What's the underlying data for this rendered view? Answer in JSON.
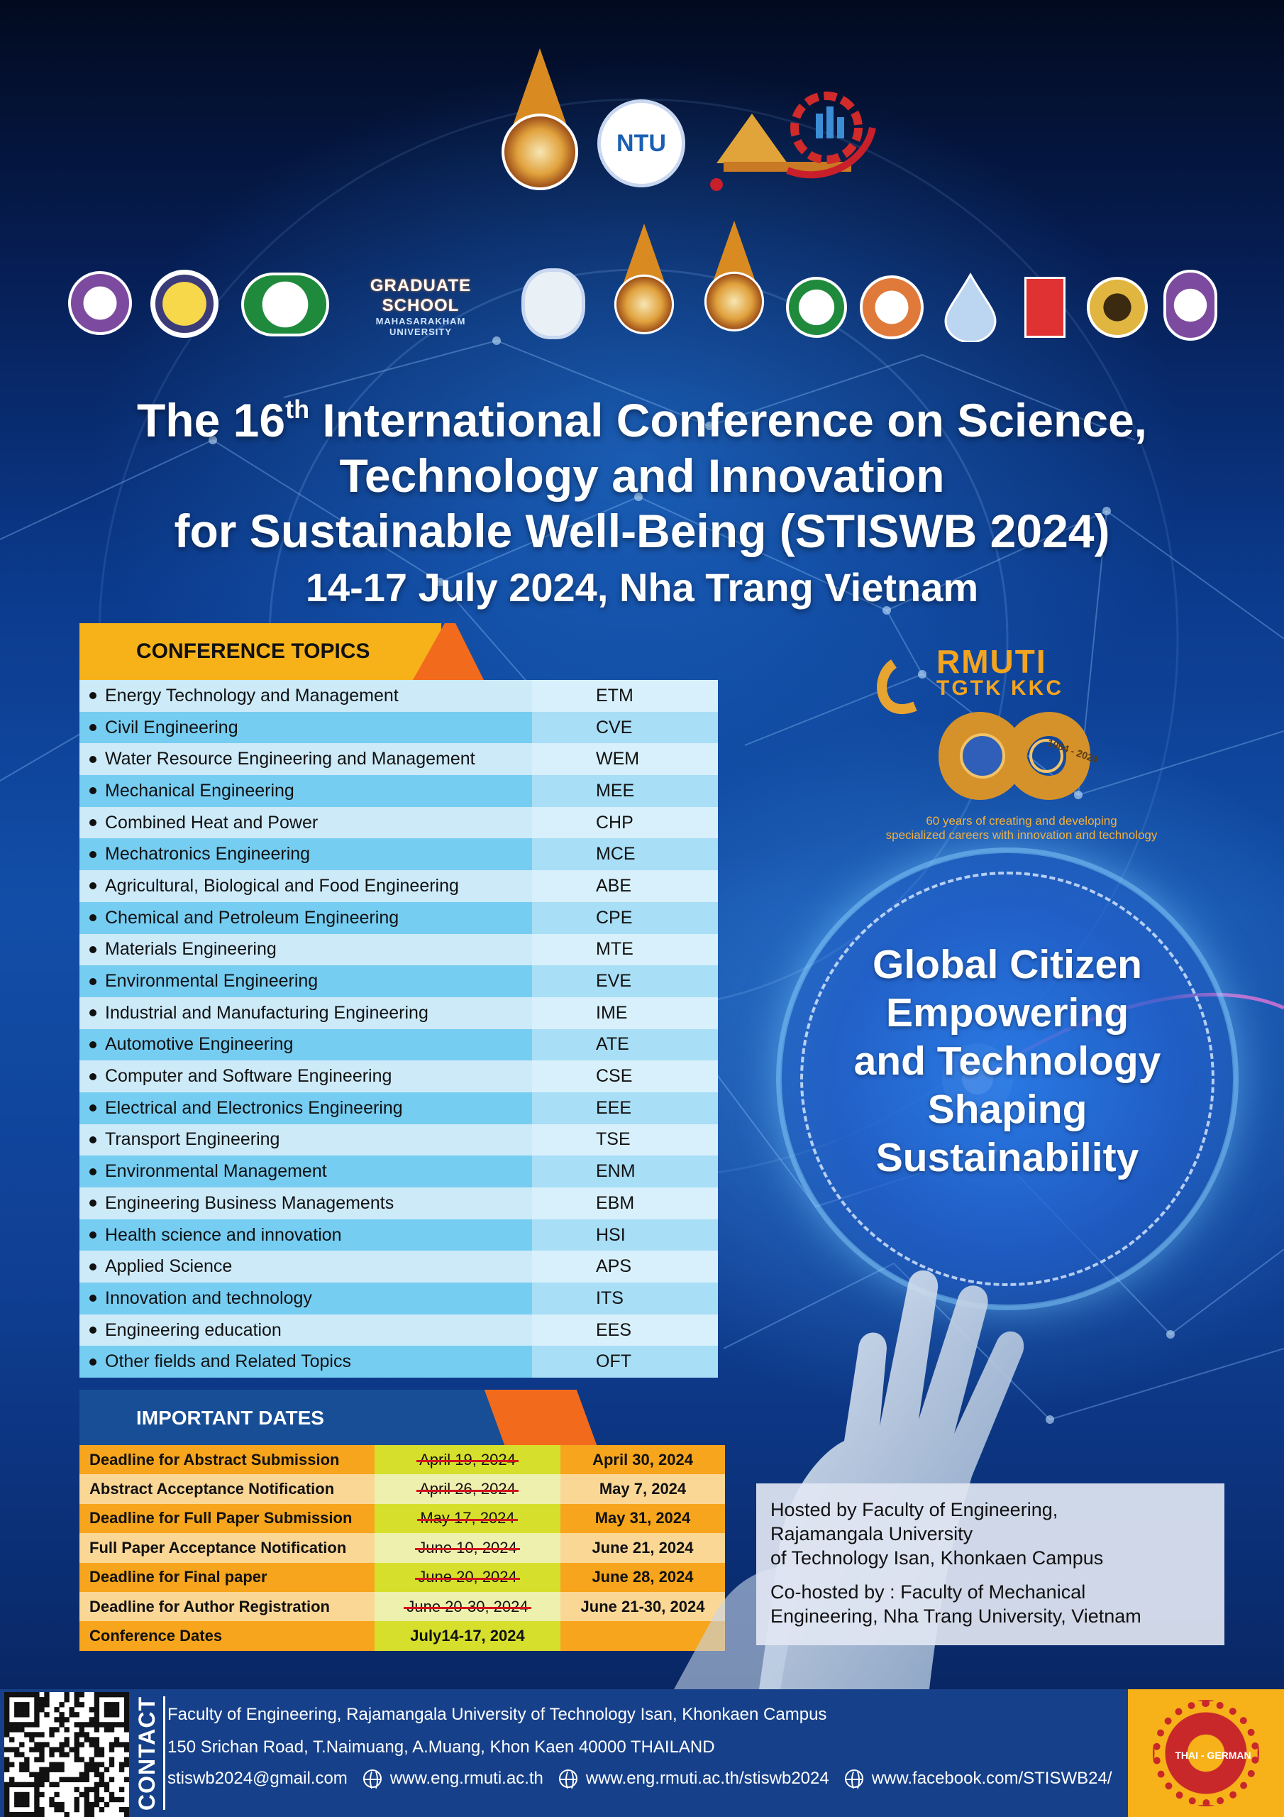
{
  "title": {
    "line1_pre": "The 16",
    "line1_sup": "th",
    "line1_post": " International Conference on Science,",
    "line2": "Technology and Innovation",
    "line3": "for Sustainable Well-Being (STISWB 2024)",
    "dates": "14-17 July 2024,  Nha Trang Vietnam"
  },
  "logos": {
    "ntu": "NTU",
    "graduate_school": "GRADUATE SCHOOL",
    "graduate_school_sub": "MAHASARAKHAM UNIVERSITY"
  },
  "topics": {
    "heading": "CONFERENCE   TOPICS",
    "items": [
      {
        "name": "Energy Technology and Management",
        "code": "ETM"
      },
      {
        "name": "Civil Engineering",
        "code": "CVE"
      },
      {
        "name": "Water Resource Engineering and Management",
        "code": "WEM"
      },
      {
        "name": "Mechanical Engineering",
        "code": "MEE"
      },
      {
        "name": "Combined Heat and Power",
        "code": "CHP"
      },
      {
        "name": "Mechatronics Engineering",
        "code": "MCE"
      },
      {
        "name": "Agricultural, Biological and Food Engineering",
        "code": "ABE"
      },
      {
        "name": "Chemical and Petroleum Engineering",
        "code": "CPE"
      },
      {
        "name": "Materials Engineering",
        "code": "MTE"
      },
      {
        "name": "Environmental Engineering",
        "code": "EVE"
      },
      {
        "name": "Industrial and Manufacturing Engineering",
        "code": "IME"
      },
      {
        "name": "Automotive Engineering",
        "code": "ATE"
      },
      {
        "name": "Computer and Software Engineering",
        "code": "CSE"
      },
      {
        "name": "Electrical and Electronics Engineering",
        "code": "EEE"
      },
      {
        "name": "Transport Engineering",
        "code": "TSE"
      },
      {
        "name": "Environmental Management",
        "code": "ENM"
      },
      {
        "name": "Engineering Business Managements",
        "code": "EBM"
      },
      {
        "name": "Health science and innovation",
        "code": "HSI"
      },
      {
        "name": "Applied Science",
        "code": "APS"
      },
      {
        "name": "Innovation and technology",
        "code": "ITS"
      },
      {
        "name": "Engineering education",
        "code": "EES"
      },
      {
        "name": "Other fields and Related Topics",
        "code": "OFT"
      }
    ]
  },
  "important_dates": {
    "heading": "IMPORTANT DATES",
    "rows": [
      {
        "label": "Deadline for Abstract Submission",
        "old": "April 19, 2024",
        "new": "April 30, 2024"
      },
      {
        "label": "Abstract Acceptance Notification",
        "old": "April 26, 2024",
        "new": "May 7, 2024"
      },
      {
        "label": "Deadline for Full Paper Submission",
        "old": "May 17, 2024",
        "new": "May 31, 2024"
      },
      {
        "label": "Full Paper Acceptance Notification",
        "old": "June 10, 2024",
        "new": "June 21, 2024"
      },
      {
        "label": "Deadline for Final paper",
        "old": "June 20, 2024",
        "new": "June 28, 2024"
      },
      {
        "label": "Deadline for Author Registration",
        "old": "June 20-30, 2024",
        "new": "June 21-30, 2024"
      },
      {
        "label": "Conference Dates",
        "old": "July14-17, 2024",
        "new": ""
      }
    ]
  },
  "rmuti": {
    "title": "RMUTI",
    "subtitle": "TGTK KKC",
    "years": "1964 - 2024",
    "tagline_1": "60 years of creating and developing",
    "tagline_2": "specialized careers with innovation and technology"
  },
  "slogan": {
    "line1": "Global Citizen",
    "line2": "Empowering",
    "line3": "and Technology",
    "line4": "Shaping",
    "line5": "Sustainability"
  },
  "hosted": {
    "line1": "Hosted by Faculty of Engineering,",
    "line2": "Rajamangala University",
    "line3": "of Technology Isan, Khonkaen Campus",
    "co1": "Co-hosted by :  Faculty of Mechanical",
    "co2": "Engineering, Nha Trang University, Vietnam"
  },
  "contact": {
    "label": "CONTACT",
    "line1": "Faculty of Engineering, Rajamangala University of Technology Isan, Khonkaen Campus",
    "line2": "150 Srichan Road, T.Naimuang, A.Muang, Khon Kaen 40000 THAILAND",
    "email": "stiswb2024@gmail.com",
    "web1": "www.eng.rmuti.ac.th",
    "web2": "www.eng.rmuti.ac.th/stiswb2024",
    "facebook": "www.facebook.com/STISWB24/",
    "tge_label": "THAI - GERMAN"
  },
  "colors": {
    "topic_head": "#f7b21a",
    "accent_orange": "#f26b1d",
    "dates_head": "#174e96",
    "footer": "#16408a"
  }
}
